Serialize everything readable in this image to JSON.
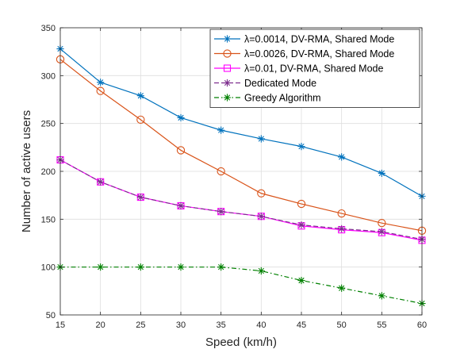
{
  "chart_data": {
    "type": "line",
    "title": "",
    "xlabel": "Speed (km/h)",
    "ylabel": "Number of active users",
    "xlim": [
      15,
      60
    ],
    "ylim": [
      50,
      350
    ],
    "xticks": [
      15,
      20,
      25,
      30,
      35,
      40,
      45,
      50,
      55,
      60
    ],
    "yticks": [
      50,
      100,
      150,
      200,
      250,
      300,
      350
    ],
    "grid": true,
    "legend_position": "top-right",
    "x": [
      15,
      20,
      25,
      30,
      35,
      40,
      45,
      50,
      55,
      60
    ],
    "series": [
      {
        "name": "λ=0.0014, DV-RMA, Shared Mode",
        "color": "#0072BD",
        "marker": "asterisk",
        "line_style": "solid",
        "values": [
          328,
          293,
          279,
          256,
          243,
          234,
          226,
          215,
          198,
          174
        ]
      },
      {
        "name": "λ=0.0026, DV-RMA, Shared Mode",
        "color": "#D95319",
        "marker": "circle",
        "line_style": "solid",
        "values": [
          317,
          284,
          254,
          222,
          200,
          177,
          166,
          156,
          146,
          138
        ]
      },
      {
        "name": "λ=0.01, DV-RMA, Shared Mode",
        "color": "#FF00FF",
        "marker": "square",
        "line_style": "solid",
        "values": [
          212,
          189,
          173,
          164,
          158,
          153,
          143,
          139,
          136,
          128
        ]
      },
      {
        "name": "Dedicated Mode",
        "color": "#7E2F8E",
        "marker": "asterisk",
        "line_style": "dashed",
        "values": [
          212,
          189,
          173,
          164,
          158,
          153,
          144,
          140,
          137,
          129
        ]
      },
      {
        "name": "Greedy Algorithm",
        "color": "#008000",
        "marker": "asterisk",
        "line_style": "dashdot",
        "values": [
          100,
          100,
          100,
          100,
          100,
          96,
          86,
          78,
          70,
          62
        ]
      }
    ]
  }
}
